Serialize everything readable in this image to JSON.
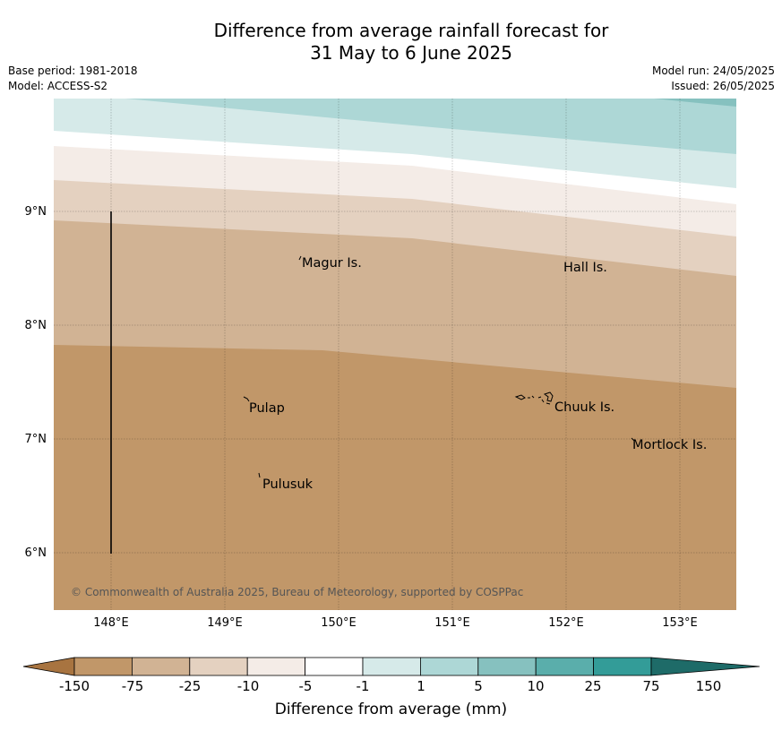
{
  "title_line1": "Difference from average rainfall forecast for",
  "title_line2": "31 May to 6 June 2025",
  "meta": {
    "base_period": "Base period: 1981-2018",
    "model": "Model: ACCESS-S2",
    "model_run": "Model run: 24/05/2025",
    "issued": "Issued: 26/05/2025"
  },
  "map": {
    "lon_labels": [
      "148°E",
      "149°E",
      "150°E",
      "151°E",
      "152°E",
      "153°E"
    ],
    "lat_labels": [
      "9°N",
      "8°N",
      "7°N",
      "6°N"
    ],
    "places": [
      {
        "name": "Magur Is."
      },
      {
        "name": "Hall Is."
      },
      {
        "name": "Pulap"
      },
      {
        "name": "Chuuk Is."
      },
      {
        "name": "Mortlock Is."
      },
      {
        "name": "Pulusuk"
      }
    ],
    "copyright": "© Commonwealth of Australia 2025, Bureau of Meteorology, supported by COSPPac"
  },
  "colorbar": {
    "label": "Difference from average (mm)",
    "ticks": [
      "-150",
      "-75",
      "-25",
      "-10",
      "-5",
      "-1",
      "1",
      "5",
      "10",
      "25",
      "75",
      "150"
    ],
    "colors": [
      "#a87440",
      "#c19769",
      "#d1b394",
      "#e4d1c0",
      "#f4ece7",
      "#ffffff",
      "#d6eae9",
      "#add7d6",
      "#86c1bf",
      "#5aaeab",
      "#339c98",
      "#1e6b68"
    ]
  }
}
